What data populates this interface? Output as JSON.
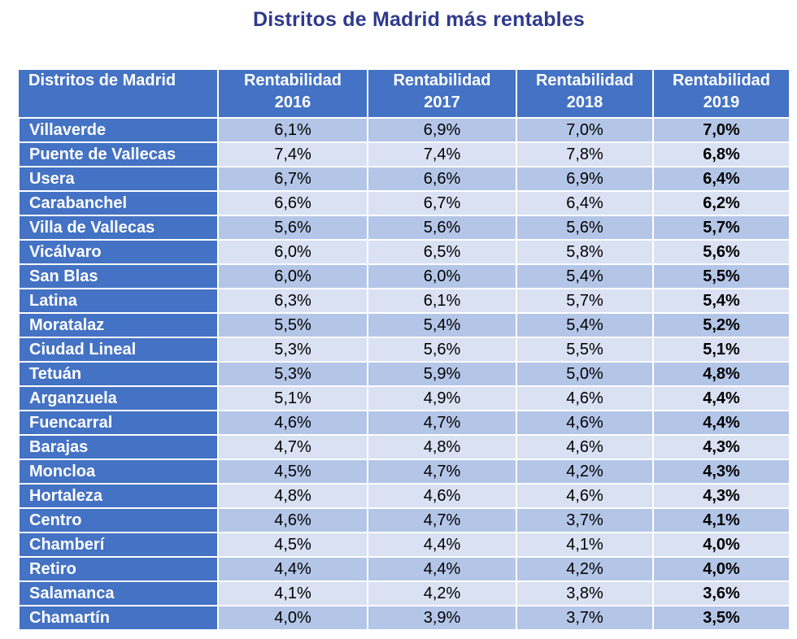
{
  "title": "Distritos de Madrid más rentables",
  "chart_data": {
    "type": "table",
    "title": "Distritos de Madrid más rentables",
    "columns": [
      {
        "line1": "Distritos de Madrid",
        "line2": ""
      },
      {
        "line1": "Rentabilidad",
        "line2": "2016"
      },
      {
        "line1": "Rentabilidad",
        "line2": "2017"
      },
      {
        "line1": "Rentabilidad",
        "line2": "2018"
      },
      {
        "line1": "Rentabilidad",
        "line2": "2019"
      }
    ],
    "rows": [
      {
        "district": "Villaverde",
        "values": [
          "6,1%",
          "6,9%",
          "7,0%",
          "7,0%"
        ]
      },
      {
        "district": "Puente de Vallecas",
        "values": [
          "7,4%",
          "7,4%",
          "7,8%",
          "6,8%"
        ]
      },
      {
        "district": "Usera",
        "values": [
          "6,7%",
          "6,6%",
          "6,9%",
          "6,4%"
        ]
      },
      {
        "district": "Carabanchel",
        "values": [
          "6,6%",
          "6,7%",
          "6,4%",
          "6,2%"
        ]
      },
      {
        "district": "Villa de Vallecas",
        "values": [
          "5,6%",
          "5,6%",
          "5,6%",
          "5,7%"
        ]
      },
      {
        "district": "Vicálvaro",
        "values": [
          "6,0%",
          "6,5%",
          "5,8%",
          "5,6%"
        ]
      },
      {
        "district": "San Blas",
        "values": [
          "6,0%",
          "6,0%",
          "5,4%",
          "5,5%"
        ]
      },
      {
        "district": "Latina",
        "values": [
          "6,3%",
          "6,1%",
          "5,7%",
          "5,4%"
        ]
      },
      {
        "district": "Moratalaz",
        "values": [
          "5,5%",
          "5,4%",
          "5,4%",
          "5,2%"
        ]
      },
      {
        "district": "Ciudad Lineal",
        "values": [
          "5,3%",
          "5,6%",
          "5,5%",
          "5,1%"
        ]
      },
      {
        "district": "Tetuán",
        "values": [
          "5,3%",
          "5,9%",
          "5,0%",
          "4,8%"
        ]
      },
      {
        "district": "Arganzuela",
        "values": [
          "5,1%",
          "4,9%",
          "4,6%",
          "4,4%"
        ]
      },
      {
        "district": "Fuencarral",
        "values": [
          "4,6%",
          "4,7%",
          "4,6%",
          "4,4%"
        ]
      },
      {
        "district": "Barajas",
        "values": [
          "4,7%",
          "4,8%",
          "4,6%",
          "4,3%"
        ]
      },
      {
        "district": "Moncloa",
        "values": [
          "4,5%",
          "4,7%",
          "4,2%",
          "4,3%"
        ]
      },
      {
        "district": "Hortaleza",
        "values": [
          "4,8%",
          "4,6%",
          "4,6%",
          "4,3%"
        ]
      },
      {
        "district": "Centro",
        "values": [
          "4,6%",
          "4,7%",
          "3,7%",
          "4,1%"
        ]
      },
      {
        "district": "Chamberí",
        "values": [
          "4,5%",
          "4,4%",
          "4,1%",
          "4,0%"
        ]
      },
      {
        "district": "Retiro",
        "values": [
          "4,4%",
          "4,4%",
          "4,2%",
          "4,0%"
        ]
      },
      {
        "district": "Salamanca",
        "values": [
          "4,1%",
          "4,2%",
          "3,8%",
          "3,6%"
        ]
      },
      {
        "district": "Chamartín",
        "values": [
          "4,0%",
          "3,9%",
          "3,7%",
          "3,5%"
        ]
      }
    ]
  },
  "colors": {
    "title": "#2e3a8c",
    "header_bg": "#4472c4",
    "row_odd": "#b4c6e7",
    "row_even": "#d9e1f2"
  }
}
